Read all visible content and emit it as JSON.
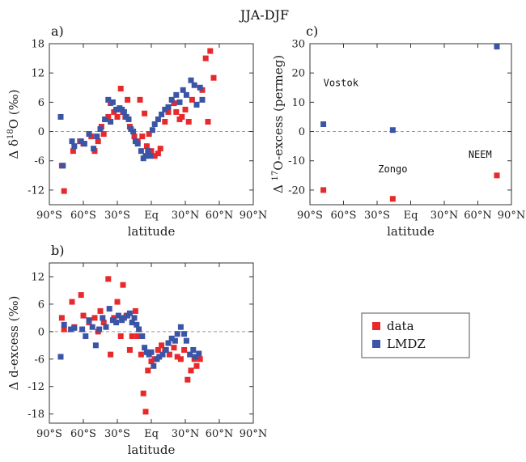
{
  "figure": {
    "title": "JJA-DJF"
  },
  "colors": {
    "data": "#e8292b",
    "lmdz": "#3a55a6",
    "zero_line": "#999999",
    "frame": "#333333"
  },
  "legend": {
    "data_label": "data",
    "lmdz_label": "LMDZ"
  },
  "chart_data": [
    {
      "id": "a",
      "type": "scatter",
      "panel_label": "a)",
      "xlabel": "latitude",
      "ylabel": "Δ δ18O (‰)",
      "ylabel_parts": [
        "Δ δ",
        "18",
        "O (‰)"
      ],
      "xlim": [
        -90,
        90
      ],
      "ylim": [
        -15,
        18
      ],
      "xticks": [
        -90,
        -60,
        -30,
        0,
        30,
        60,
        90
      ],
      "xtick_labels": [
        "90°S",
        "60°S",
        "30°S",
        "Eq",
        "30°N",
        "60°N",
        "90°N"
      ],
      "yticks": [
        -12,
        -6,
        0,
        6,
        12,
        18
      ],
      "ytick_labels": [
        "-12",
        "-6",
        "0",
        "6",
        "12",
        "18"
      ],
      "zero_line": true,
      "series": [
        {
          "name": "data",
          "points": [
            [
              -79,
              -7
            ],
            [
              -77,
              -12.2
            ],
            [
              -69,
              -4
            ],
            [
              -63,
              -2
            ],
            [
              -60,
              -2.5
            ],
            [
              -53,
              -1
            ],
            [
              -50,
              -4
            ],
            [
              -47,
              -2
            ],
            [
              -44,
              1
            ],
            [
              -42,
              -0.5
            ],
            [
              -38,
              3
            ],
            [
              -36,
              5.8
            ],
            [
              -33,
              4
            ],
            [
              -30,
              3
            ],
            [
              -27,
              8.8
            ],
            [
              -25,
              4
            ],
            [
              -23,
              3
            ],
            [
              -21,
              6.5
            ],
            [
              -19,
              1
            ],
            [
              -15,
              -1
            ],
            [
              -12,
              -2
            ],
            [
              -10,
              6.5
            ],
            [
              -8,
              -1
            ],
            [
              -6,
              3.7
            ],
            [
              -4,
              -3
            ],
            [
              -2,
              -0.5
            ],
            [
              0,
              -4
            ],
            [
              3,
              -5
            ],
            [
              6,
              -4.5
            ],
            [
              8,
              -3.5
            ],
            [
              12,
              2
            ],
            [
              15,
              4
            ],
            [
              20,
              5.8
            ],
            [
              22,
              4
            ],
            [
              25,
              2.5
            ],
            [
              27,
              3
            ],
            [
              30,
              4.5
            ],
            [
              33,
              2
            ],
            [
              36,
              6.5
            ],
            [
              40,
              5.5
            ],
            [
              45,
              8.5
            ],
            [
              48,
              15
            ],
            [
              50,
              2
            ],
            [
              52,
              16.5
            ],
            [
              55,
              11
            ]
          ]
        },
        {
          "name": "LMDZ",
          "points": [
            [
              -80,
              3
            ],
            [
              -78,
              -7
            ],
            [
              -70,
              -2
            ],
            [
              -68,
              -3
            ],
            [
              -62,
              -2
            ],
            [
              -59,
              -2.5
            ],
            [
              -55,
              -0.5
            ],
            [
              -51,
              -3.5
            ],
            [
              -48,
              -1
            ],
            [
              -45,
              0.5
            ],
            [
              -41,
              2.5
            ],
            [
              -38,
              6.5
            ],
            [
              -36,
              2
            ],
            [
              -34,
              6
            ],
            [
              -31,
              4.5
            ],
            [
              -28,
              4.8
            ],
            [
              -26,
              4.5
            ],
            [
              -24,
              4
            ],
            [
              -22,
              3
            ],
            [
              -20,
              2.5
            ],
            [
              -18,
              0.5
            ],
            [
              -16,
              0
            ],
            [
              -14,
              -2
            ],
            [
              -12,
              -2.5
            ],
            [
              -9,
              -4
            ],
            [
              -7,
              -5.5
            ],
            [
              -5,
              -5
            ],
            [
              -3,
              -4
            ],
            [
              -1,
              -5
            ],
            [
              1,
              0.3
            ],
            [
              3,
              1.5
            ],
            [
              6,
              2.5
            ],
            [
              9,
              3.5
            ],
            [
              12,
              4.5
            ],
            [
              15,
              5
            ],
            [
              18,
              6.5
            ],
            [
              22,
              7.5
            ],
            [
              25,
              6
            ],
            [
              28,
              8.5
            ],
            [
              31,
              7.5
            ],
            [
              35,
              10.5
            ],
            [
              38,
              9.5
            ],
            [
              40,
              5.5
            ],
            [
              43,
              9
            ],
            [
              45,
              6.5
            ]
          ]
        }
      ]
    },
    {
      "id": "b",
      "type": "scatter",
      "panel_label": "b)",
      "xlabel": "latitude",
      "ylabel": "Δ d-excess (‰)",
      "xlim": [
        -90,
        90
      ],
      "ylim": [
        -20,
        15
      ],
      "xticks": [
        -90,
        -60,
        -30,
        0,
        30,
        60,
        90
      ],
      "xtick_labels": [
        "90°S",
        "60°S",
        "30°S",
        "Eq",
        "30°N",
        "60°N",
        "90°N"
      ],
      "yticks": [
        -18,
        -12,
        -6,
        0,
        6,
        12
      ],
      "ytick_labels": [
        "-18",
        "-12",
        "-6",
        "0",
        "6",
        "12"
      ],
      "zero_line": true,
      "series": [
        {
          "name": "data",
          "points": [
            [
              -79,
              3
            ],
            [
              -77,
              0.5
            ],
            [
              -70,
              6.5
            ],
            [
              -68,
              1
            ],
            [
              -62,
              8
            ],
            [
              -60,
              3.5
            ],
            [
              -55,
              2
            ],
            [
              -50,
              3
            ],
            [
              -47,
              0
            ],
            [
              -45,
              4.5
            ],
            [
              -42,
              2
            ],
            [
              -38,
              11.5
            ],
            [
              -36,
              -5
            ],
            [
              -33,
              3
            ],
            [
              -30,
              6.5
            ],
            [
              -27,
              -1
            ],
            [
              -25,
              10.2
            ],
            [
              -22,
              3.5
            ],
            [
              -19,
              -4
            ],
            [
              -17,
              -1
            ],
            [
              -14,
              4.5
            ],
            [
              -12,
              -1
            ],
            [
              -9,
              -5
            ],
            [
              -7,
              -13.5
            ],
            [
              -5,
              -17.5
            ],
            [
              -3,
              -8.5
            ],
            [
              0,
              -6.5
            ],
            [
              3,
              -6
            ],
            [
              6,
              -4
            ],
            [
              9,
              -3
            ],
            [
              12,
              -4
            ],
            [
              16,
              -5
            ],
            [
              20,
              -3.5
            ],
            [
              23,
              -5.5
            ],
            [
              26,
              -6
            ],
            [
              29,
              -4
            ],
            [
              32,
              -10.5
            ],
            [
              35,
              -8.5
            ],
            [
              38,
              -6
            ],
            [
              40,
              -7.5
            ],
            [
              43,
              -6
            ]
          ]
        },
        {
          "name": "LMDZ",
          "points": [
            [
              -80,
              -5.5
            ],
            [
              -77,
              1.5
            ],
            [
              -71,
              0.5
            ],
            [
              -68,
              0.8
            ],
            [
              -61,
              0.5
            ],
            [
              -58,
              -1
            ],
            [
              -55,
              2.5
            ],
            [
              -52,
              1
            ],
            [
              -49,
              -3
            ],
            [
              -46,
              0.5
            ],
            [
              -43,
              3
            ],
            [
              -40,
              1
            ],
            [
              -37,
              5
            ],
            [
              -34,
              2.5
            ],
            [
              -31,
              2
            ],
            [
              -29,
              3.5
            ],
            [
              -26,
              2.5
            ],
            [
              -24,
              3
            ],
            [
              -21,
              3.5
            ],
            [
              -19,
              4
            ],
            [
              -17,
              2
            ],
            [
              -15,
              3
            ],
            [
              -13,
              1.5
            ],
            [
              -11,
              0.5
            ],
            [
              -8,
              -1
            ],
            [
              -6,
              -3.5
            ],
            [
              -4,
              -4.5
            ],
            [
              -2,
              -5
            ],
            [
              0,
              -4.5
            ],
            [
              2,
              -7.5
            ],
            [
              5,
              -6
            ],
            [
              7,
              -5.5
            ],
            [
              10,
              -5
            ],
            [
              13,
              -4
            ],
            [
              15,
              -2.5
            ],
            [
              18,
              -1.5
            ],
            [
              21,
              -2
            ],
            [
              23,
              -0.5
            ],
            [
              26,
              1
            ],
            [
              29,
              -0.5
            ],
            [
              31,
              -2
            ],
            [
              34,
              -5
            ],
            [
              37,
              -4
            ],
            [
              39,
              -5.5
            ],
            [
              42,
              -4.8
            ]
          ]
        }
      ]
    },
    {
      "id": "c",
      "type": "scatter",
      "panel_label": "c)",
      "xlabel": "latitude",
      "ylabel": "Δ 17O-excess (permeg)",
      "ylabel_parts": [
        "Δ ",
        "17",
        "O-excess (permeg)"
      ],
      "xlim": [
        -90,
        90
      ],
      "ylim": [
        -25,
        30
      ],
      "xticks": [
        -90,
        -60,
        -30,
        0,
        30,
        60,
        90
      ],
      "xtick_labels": [
        "90°S",
        "60°S",
        "30°S",
        "Eq",
        "30°N",
        "60°N",
        "90°N"
      ],
      "yticks": [
        -20,
        -10,
        0,
        10,
        20,
        30
      ],
      "ytick_labels": [
        "-20",
        "-10",
        "0",
        "10",
        "20",
        "30"
      ],
      "zero_line": true,
      "annotations": [
        {
          "text": "Vostok",
          "x": -78,
          "y": 15.5,
          "anchor": "start"
        },
        {
          "text": "Zongo",
          "x": -16,
          "y": -14,
          "anchor": "middle"
        },
        {
          "text": "NEEM",
          "x": 62,
          "y": -9,
          "anchor": "middle"
        }
      ],
      "series": [
        {
          "name": "data",
          "points": [
            [
              -78,
              -20
            ],
            [
              -16,
              -23
            ],
            [
              77,
              -15
            ]
          ]
        },
        {
          "name": "LMDZ",
          "points": [
            [
              -78,
              2.5
            ],
            [
              -16,
              0.5
            ],
            [
              77,
              29
            ]
          ]
        }
      ]
    }
  ]
}
